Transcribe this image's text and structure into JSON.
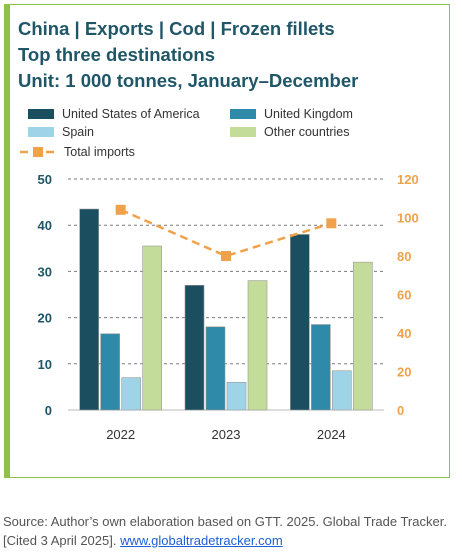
{
  "title_lines": [
    "China | Exports | Cod | Frozen fillets",
    "Top three destinations",
    "Unit: 1 000 tonnes, January–December"
  ],
  "source": {
    "text": "Source: Author’s own elaboration based on GTT. 2025. Global Trade Tracker. [Cited 3 April 2025].",
    "link": "www.globaltradetracker.com"
  },
  "chart_data": {
    "type": "bar",
    "categories": [
      "2022",
      "2023",
      "2024"
    ],
    "series": [
      {
        "name": "United States of America",
        "color": "#1b4e5e",
        "axis": "left",
        "values": [
          43.5,
          27,
          38
        ]
      },
      {
        "name": "United Kingdom",
        "color": "#2e8aa8",
        "axis": "left",
        "values": [
          16.5,
          18,
          18.5
        ]
      },
      {
        "name": "Spain",
        "color": "#9fd3e8",
        "axis": "left",
        "values": [
          7,
          6,
          8.5
        ]
      },
      {
        "name": "Other countries",
        "color": "#c3dc9a",
        "axis": "left",
        "values": [
          35.5,
          28,
          32
        ]
      }
    ],
    "line_series": {
      "name": "Total imports",
      "color": "#f0a24a",
      "axis": "right",
      "values": [
        104,
        80,
        97
      ]
    },
    "y_left": {
      "min": 0,
      "max": 50,
      "ticks": [
        0,
        10,
        20,
        30,
        40,
        50
      ]
    },
    "y_right": {
      "min": 0,
      "max": 120,
      "ticks": [
        0,
        20,
        40,
        60,
        80,
        100,
        120
      ]
    },
    "grid": true,
    "legend": "top"
  }
}
